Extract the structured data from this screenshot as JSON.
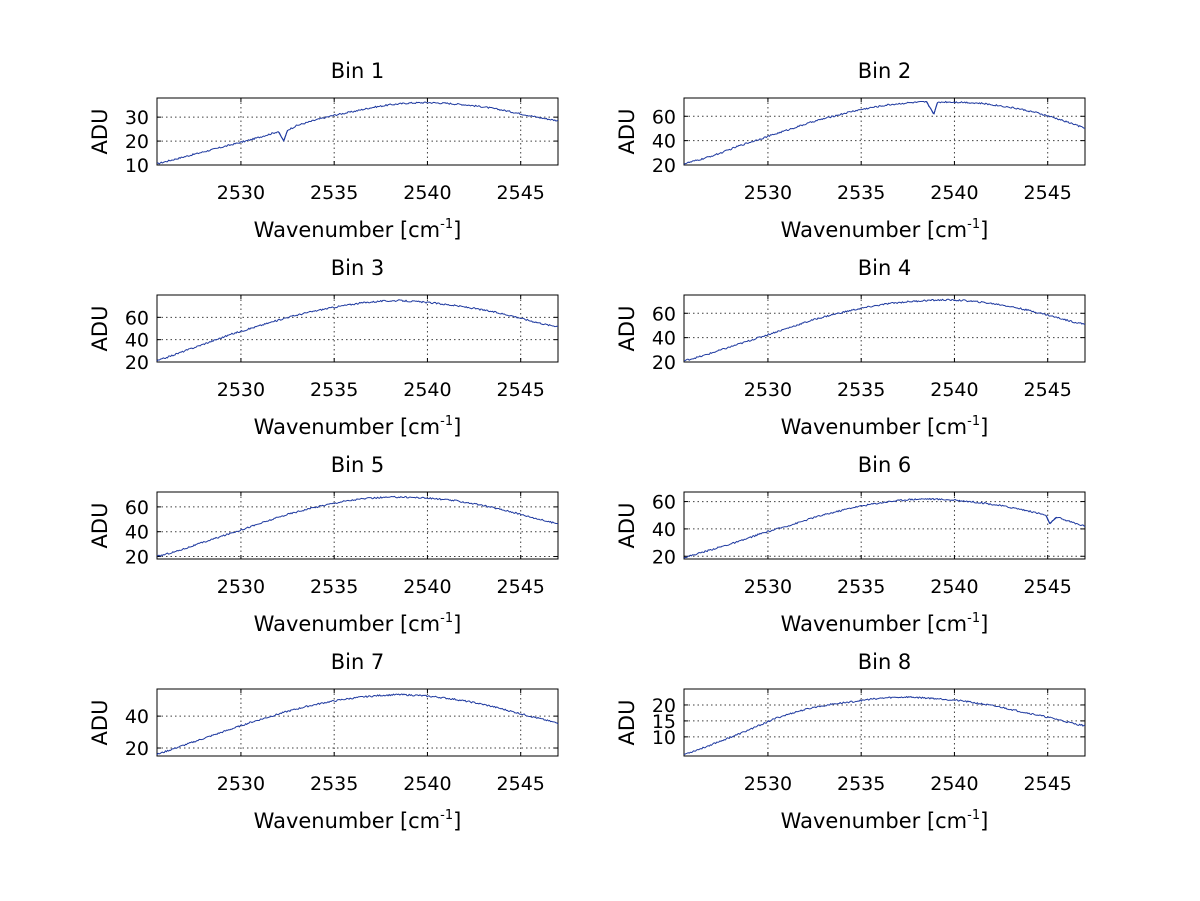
{
  "chart_data": [
    {
      "type": "line",
      "title": "Bin 1",
      "xlabel": "Wavenumber [cm",
      "xlabel_sup": "-1",
      "xlabel_suffix": "]",
      "ylabel": "ADU",
      "xlim": [
        2525.5,
        2547
      ],
      "ylim": [
        10,
        38
      ],
      "xticks": [
        2530,
        2535,
        2540,
        2545
      ],
      "yticks": [
        10,
        20,
        30
      ],
      "color": "#1f3aa0",
      "series": [
        {
          "name": "Bin 1",
          "x": [
            2525.5,
            2526.5,
            2527.5,
            2528.5,
            2529.5,
            2530.5,
            2531.5,
            2532.0,
            2532.3,
            2532.5,
            2533.0,
            2534.0,
            2535.0,
            2536.0,
            2537.0,
            2538.0,
            2539.0,
            2540.0,
            2541.0,
            2542.0,
            2543.0,
            2544.0,
            2545.0,
            2546.0,
            2547.0
          ],
          "y": [
            10.5,
            12.5,
            14.5,
            16.5,
            18.5,
            20.5,
            22.8,
            24.0,
            20.0,
            24.6,
            26.5,
            28.8,
            30.8,
            32.3,
            34.0,
            35.2,
            35.9,
            36.1,
            35.8,
            35.2,
            34.3,
            33.0,
            31.4,
            29.8,
            28.5
          ]
        }
      ]
    },
    {
      "type": "line",
      "title": "Bin 2",
      "xlabel": "Wavenumber [cm",
      "xlabel_sup": "-1",
      "xlabel_suffix": "]",
      "ylabel": "ADU",
      "xlim": [
        2525.5,
        2547
      ],
      "ylim": [
        20,
        75
      ],
      "xticks": [
        2530,
        2535,
        2540,
        2545
      ],
      "yticks": [
        20,
        40,
        60
      ],
      "color": "#1f3aa0",
      "series": [
        {
          "name": "Bin 2",
          "x": [
            2525.5,
            2526.5,
            2527.5,
            2528.5,
            2529.5,
            2530.5,
            2531.5,
            2532.5,
            2533.5,
            2534.5,
            2535.5,
            2536.5,
            2537.5,
            2538.5,
            2538.9,
            2539.1,
            2539.5,
            2540.5,
            2541.5,
            2542.5,
            2543.5,
            2544.5,
            2545.5,
            2546.5,
            2547.0
          ],
          "y": [
            21,
            25,
            30,
            36,
            41,
            46,
            51,
            56,
            60,
            64,
            67,
            69.5,
            71,
            71.8,
            62,
            71.5,
            71.8,
            71.5,
            70.5,
            68.5,
            66,
            62.5,
            58,
            53,
            50
          ]
        }
      ]
    },
    {
      "type": "line",
      "title": "Bin 3",
      "xlabel": "Wavenumber [cm",
      "xlabel_sup": "-1",
      "xlabel_suffix": "]",
      "ylabel": "ADU",
      "xlim": [
        2525.5,
        2547
      ],
      "ylim": [
        20,
        80
      ],
      "xticks": [
        2530,
        2535,
        2540,
        2545
      ],
      "yticks": [
        20,
        40,
        60
      ],
      "color": "#1f3aa0",
      "series": [
        {
          "name": "Bin 3",
          "x": [
            2525.5,
            2526.5,
            2527.5,
            2528.5,
            2529.5,
            2530.5,
            2531.5,
            2532.5,
            2533.5,
            2534.5,
            2535.5,
            2536.5,
            2537.5,
            2538.5,
            2539.5,
            2540.5,
            2541.5,
            2542.5,
            2543.5,
            2544.5,
            2545.5,
            2546.5,
            2547.0
          ],
          "y": [
            21,
            27,
            33,
            39,
            45,
            50,
            55,
            60,
            64,
            67.5,
            70.5,
            73,
            74.5,
            75,
            74,
            72.5,
            70.5,
            68,
            65,
            61.5,
            57,
            53,
            52
          ]
        }
      ]
    },
    {
      "type": "line",
      "title": "Bin 4",
      "xlabel": "Wavenumber [cm",
      "xlabel_sup": "-1",
      "xlabel_suffix": "]",
      "ylabel": "ADU",
      "xlim": [
        2525.5,
        2547
      ],
      "ylim": [
        20,
        75
      ],
      "xticks": [
        2530,
        2535,
        2540,
        2545
      ],
      "yticks": [
        20,
        40,
        60
      ],
      "color": "#1f3aa0",
      "series": [
        {
          "name": "Bin 4",
          "x": [
            2525.5,
            2526.5,
            2527.5,
            2528.5,
            2529.5,
            2530.5,
            2531.5,
            2532.5,
            2533.5,
            2534.5,
            2535.5,
            2536.5,
            2537.5,
            2538.5,
            2539.5,
            2540.5,
            2541.5,
            2542.5,
            2543.5,
            2544.5,
            2545.5,
            2546.5,
            2547.0
          ],
          "y": [
            21,
            25,
            30,
            35,
            40,
            45,
            50,
            55,
            59,
            62.5,
            65.5,
            68,
            69.5,
            70.5,
            71,
            70.5,
            69,
            67,
            64,
            60.5,
            56.5,
            52.5,
            51
          ]
        }
      ]
    },
    {
      "type": "line",
      "title": "Bin 5",
      "xlabel": "Wavenumber [cm",
      "xlabel_sup": "-1",
      "xlabel_suffix": "]",
      "ylabel": "ADU",
      "xlim": [
        2525.5,
        2547
      ],
      "ylim": [
        18,
        72
      ],
      "xticks": [
        2530,
        2535,
        2540,
        2545
      ],
      "yticks": [
        20,
        40,
        60
      ],
      "color": "#1f3aa0",
      "series": [
        {
          "name": "Bin 5",
          "x": [
            2525.5,
            2526.5,
            2527.5,
            2528.5,
            2529.5,
            2530.5,
            2531.5,
            2532.5,
            2533.5,
            2534.5,
            2535.5,
            2536.5,
            2537.5,
            2538.5,
            2539.5,
            2540.5,
            2541.5,
            2542.5,
            2543.5,
            2544.5,
            2545.5,
            2546.5,
            2547.0
          ],
          "y": [
            20,
            24,
            29,
            34,
            39,
            44,
            49,
            54,
            58,
            61.5,
            64.5,
            66.5,
            67.5,
            68,
            67.5,
            66.5,
            65,
            62.5,
            59.5,
            56,
            52,
            48,
            46.5
          ]
        }
      ]
    },
    {
      "type": "line",
      "title": "Bin 6",
      "xlabel": "Wavenumber [cm",
      "xlabel_sup": "-1",
      "xlabel_suffix": "]",
      "ylabel": "ADU",
      "xlim": [
        2525.5,
        2547
      ],
      "ylim": [
        18,
        67
      ],
      "xticks": [
        2530,
        2535,
        2540,
        2545
      ],
      "yticks": [
        20,
        40,
        60
      ],
      "color": "#1f3aa0",
      "series": [
        {
          "name": "Bin 6",
          "x": [
            2525.5,
            2526.5,
            2527.5,
            2528.5,
            2529.5,
            2530.5,
            2531.5,
            2532.5,
            2533.5,
            2534.5,
            2535.5,
            2536.5,
            2537.5,
            2538.5,
            2539.5,
            2540.5,
            2541.5,
            2542.5,
            2543.5,
            2544.5,
            2544.9,
            2545.1,
            2545.5,
            2546.5,
            2547.0
          ],
          "y": [
            19,
            23,
            27,
            31,
            36,
            40,
            44,
            48.5,
            52,
            55.5,
            58,
            60,
            61.5,
            62,
            61.5,
            60.5,
            59,
            57,
            54.5,
            51.5,
            50,
            44,
            48.5,
            44,
            42
          ]
        }
      ]
    },
    {
      "type": "line",
      "title": "Bin 7",
      "xlabel": "Wavenumber [cm",
      "xlabel_sup": "-1",
      "xlabel_suffix": "]",
      "ylabel": "ADU",
      "xlim": [
        2525.5,
        2547
      ],
      "ylim": [
        15,
        57
      ],
      "xticks": [
        2530,
        2535,
        2540,
        2545
      ],
      "yticks": [
        20,
        40
      ],
      "color": "#1f3aa0",
      "series": [
        {
          "name": "Bin 7",
          "x": [
            2525.5,
            2526.5,
            2527.5,
            2528.5,
            2529.5,
            2530.5,
            2531.5,
            2532.5,
            2533.5,
            2534.5,
            2535.5,
            2536.5,
            2537.5,
            2538.5,
            2539.5,
            2540.5,
            2541.5,
            2542.5,
            2543.5,
            2544.5,
            2545.5,
            2546.5,
            2547.0
          ],
          "y": [
            16,
            20,
            24,
            28,
            32,
            36,
            39.5,
            43,
            46,
            48.5,
            50.5,
            52,
            53,
            53.5,
            53,
            52,
            50.5,
            48.5,
            46,
            43,
            40,
            37,
            35.5
          ]
        }
      ]
    },
    {
      "type": "line",
      "title": "Bin 8",
      "xlabel": "Wavenumber [cm",
      "xlabel_sup": "-1",
      "xlabel_suffix": "]",
      "ylabel": "ADU",
      "xlim": [
        2525.5,
        2547
      ],
      "ylim": [
        4,
        25
      ],
      "xticks": [
        2530,
        2535,
        2540,
        2545
      ],
      "yticks": [
        10,
        15,
        20
      ],
      "color": "#1f3aa0",
      "series": [
        {
          "name": "Bin 8",
          "x": [
            2525.5,
            2526.5,
            2527.5,
            2528.5,
            2529.5,
            2530.5,
            2531.5,
            2532.5,
            2533.5,
            2534.5,
            2535.5,
            2536.5,
            2537.5,
            2538.5,
            2539.5,
            2540.5,
            2541.5,
            2542.5,
            2543.5,
            2544.5,
            2545.5,
            2546.5,
            2547.0
          ],
          "y": [
            4.5,
            6.5,
            8.8,
            11,
            13.5,
            16,
            17.8,
            19.3,
            20.3,
            21,
            21.8,
            22.3,
            22.5,
            22.2,
            21.8,
            21.2,
            20.3,
            19.3,
            18,
            16.8,
            15.5,
            14,
            13.5
          ]
        }
      ]
    }
  ]
}
